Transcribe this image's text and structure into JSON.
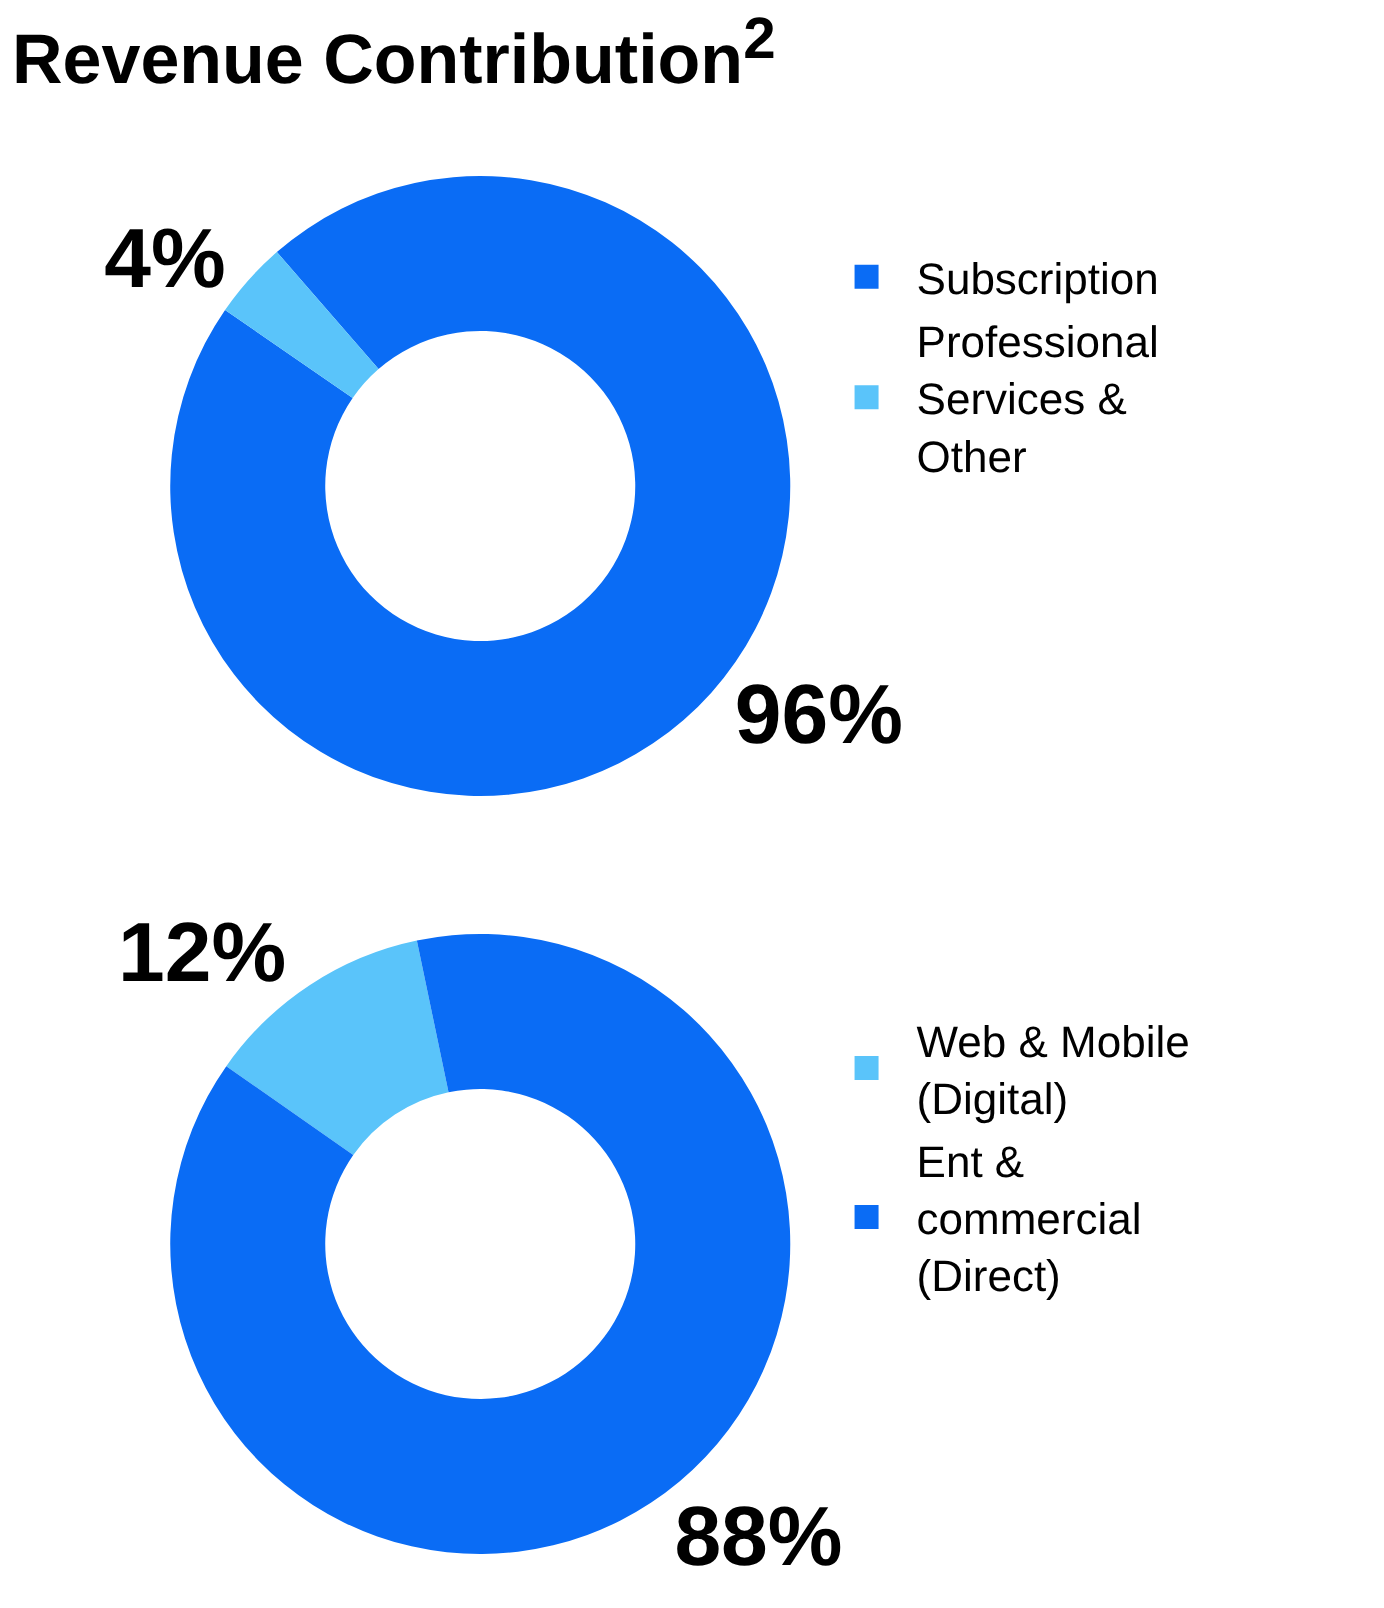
{
  "chart_data": [
    {
      "type": "donut",
      "title": "Revenue Contribution$^{2}$",
      "categories": [
        "Subscription",
        "Professional Services & Other"
      ],
      "values": [
        96,
        4
      ],
      "colors": [
        "#0a6cf5",
        "#5ac4fa"
      ],
      "value_labels": [
        "96%",
        "4%"
      ],
      "legend": "right"
    },
    {
      "type": "donut",
      "categories": [
        "Web & Mobile (Digital)",
        "Ent & commercial (Direct)"
      ],
      "values": [
        12,
        88
      ],
      "colors": [
        "#5ac4fa",
        "#0a6cf5"
      ],
      "value_labels": [
        "12%",
        "88%"
      ],
      "legend": "right"
    }
  ]
}
